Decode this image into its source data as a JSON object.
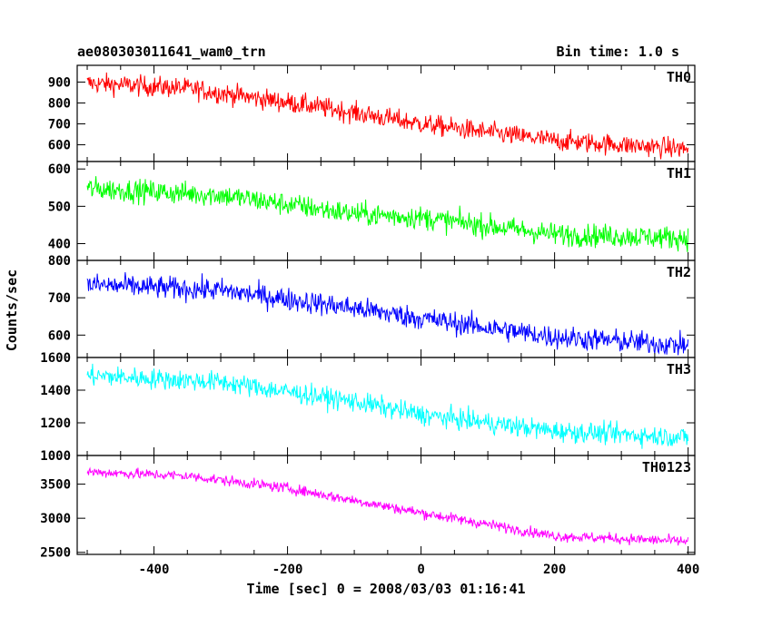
{
  "header": {
    "title": "ae080303011641_wam0_trn",
    "bin_time": "Bin time: 1.0 s"
  },
  "chart_data": {
    "type": "line",
    "xlabel": "Time [sec] 0 = 2008/03/03 01:16:41",
    "ylabel": "Counts/sec",
    "xlim": [
      -515,
      410
    ],
    "x_ticks": [
      -400,
      -200,
      0,
      200,
      400
    ],
    "x_range": [
      -500,
      400
    ],
    "panels": [
      {
        "name": "TH0",
        "color": "#ff0000",
        "ylim": [
          520,
          980
        ],
        "y_ticks": [
          600,
          700,
          800,
          900
        ],
        "trend": [
          [
            -500,
            895
          ],
          [
            -350,
            870
          ],
          [
            -150,
            780
          ],
          [
            0,
            700
          ],
          [
            200,
            620
          ],
          [
            400,
            580
          ]
        ],
        "noise": 35
      },
      {
        "name": "TH1",
        "color": "#00ff00",
        "ylim": [
          355,
          620
        ],
        "y_ticks": [
          400,
          500,
          600
        ],
        "trend": [
          [
            -500,
            548
          ],
          [
            -300,
            530
          ],
          [
            -100,
            480
          ],
          [
            0,
            470
          ],
          [
            200,
            425
          ],
          [
            400,
            415
          ]
        ],
        "noise": 22
      },
      {
        "name": "TH2",
        "color": "#0000ff",
        "ylim": [
          540,
          800
        ],
        "y_ticks": [
          600,
          700,
          800
        ],
        "trend": [
          [
            -500,
            735
          ],
          [
            -300,
            720
          ],
          [
            -100,
            672
          ],
          [
            0,
            645
          ],
          [
            200,
            595
          ],
          [
            400,
            572
          ]
        ],
        "noise": 22
      },
      {
        "name": "TH3",
        "color": "#00ffff",
        "ylim": [
          1000,
          1600
        ],
        "y_ticks": [
          1000,
          1200,
          1400,
          1600
        ],
        "trend": [
          [
            -500,
            1490
          ],
          [
            -300,
            1450
          ],
          [
            -100,
            1330
          ],
          [
            0,
            1250
          ],
          [
            200,
            1150
          ],
          [
            400,
            1110
          ]
        ],
        "noise": 45
      },
      {
        "name": "TH0123",
        "color": "#ff00ff",
        "ylim": [
          2470,
          3920
        ],
        "y_ticks": [
          2500,
          3000,
          3500
        ],
        "trend": [
          [
            -500,
            3680
          ],
          [
            -350,
            3620
          ],
          [
            -200,
            3440
          ],
          [
            0,
            3080
          ],
          [
            200,
            2740
          ],
          [
            400,
            2660
          ]
        ],
        "noise": 55
      }
    ]
  }
}
